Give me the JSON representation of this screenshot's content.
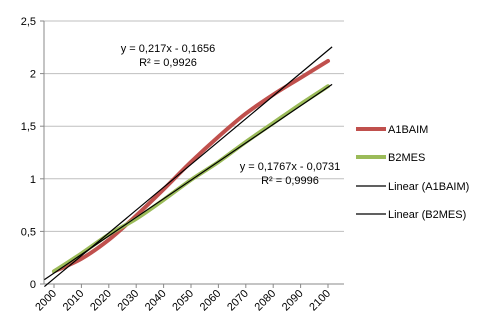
{
  "chart_data": {
    "type": "line",
    "x": [
      2000,
      2010,
      2020,
      2030,
      2040,
      2050,
      2060,
      2070,
      2080,
      2090,
      2100
    ],
    "x_tick_labels": [
      "2000",
      "2010",
      "2020",
      "2030",
      "2040",
      "2050",
      "2060",
      "2070",
      "2080",
      "2090",
      "2100"
    ],
    "ylim": [
      0,
      2.5
    ],
    "y_ticks": [
      0,
      0.5,
      1,
      1.5,
      2,
      2.5
    ],
    "y_tick_labels": [
      "0",
      "0,5",
      "1",
      "1,5",
      "2",
      "2,5"
    ],
    "grid": "horizontal",
    "legend_position": "right",
    "series": [
      {
        "name": "A1BAIM",
        "color": "#c0504d",
        "values": [
          0.12,
          0.24,
          0.42,
          0.65,
          0.9,
          1.16,
          1.4,
          1.62,
          1.8,
          1.96,
          2.12
        ]
      },
      {
        "name": "B2MES",
        "color": "#9bbb59",
        "values": [
          0.12,
          0.29,
          0.47,
          0.62,
          0.8,
          0.99,
          1.16,
          1.35,
          1.53,
          1.71,
          1.88
        ]
      }
    ],
    "trendlines": [
      {
        "name": "Linear (A1BAIM)",
        "color": "#000000",
        "slope": 0.217,
        "intercept": -0.1656,
        "equation": "y = 0,217x - 0,1656",
        "r2": "R² = 0,9926"
      },
      {
        "name": "Linear (B2MES)",
        "color": "#000000",
        "slope": 0.1767,
        "intercept": -0.0731,
        "equation": "y = 0,1767x - 0,0731",
        "r2": "R² = 0,9996"
      }
    ]
  }
}
